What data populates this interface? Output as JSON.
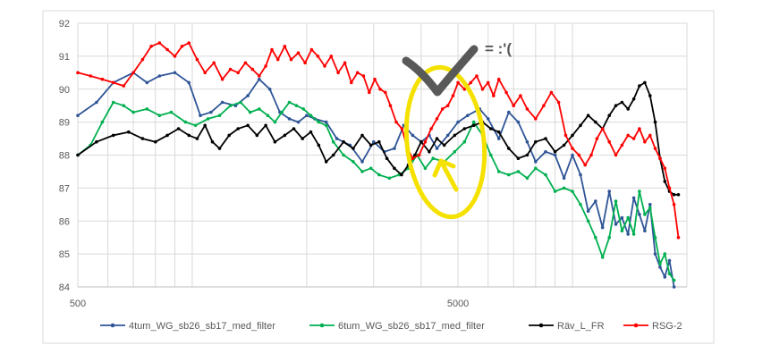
{
  "chart_data": {
    "type": "line",
    "title": "",
    "xlabel": "",
    "ylabel": "",
    "x_scale": "log",
    "xlim": [
      500,
      20000
    ],
    "ylim": [
      84,
      92
    ],
    "y_ticks": [
      84,
      85,
      86,
      87,
      88,
      89,
      90,
      91,
      92
    ],
    "x_tick_labels": [
      {
        "value": 500,
        "label": "500"
      },
      {
        "value": 5000,
        "label": "5000"
      }
    ],
    "grid": true,
    "legend": "bottom",
    "series": [
      {
        "name": "4tum_WG_sb26_sb17_med_filter",
        "color": "#2f5597",
        "points": [
          [
            500,
            89.2
          ],
          [
            560,
            89.6
          ],
          [
            620,
            90.2
          ],
          [
            700,
            90.5
          ],
          [
            760,
            90.2
          ],
          [
            820,
            90.4
          ],
          [
            900,
            90.5
          ],
          [
            980,
            90.2
          ],
          [
            1050,
            89.2
          ],
          [
            1120,
            89.3
          ],
          [
            1200,
            89.6
          ],
          [
            1300,
            89.5
          ],
          [
            1400,
            89.8
          ],
          [
            1500,
            90.3
          ],
          [
            1600,
            90.0
          ],
          [
            1700,
            89.3
          ],
          [
            1800,
            89.1
          ],
          [
            1900,
            89.0
          ],
          [
            2000,
            89.2
          ],
          [
            2100,
            89.1
          ],
          [
            2250,
            89.0
          ],
          [
            2400,
            88.5
          ],
          [
            2600,
            88.3
          ],
          [
            2800,
            87.8
          ],
          [
            3000,
            88.4
          ],
          [
            3200,
            88.1
          ],
          [
            3400,
            88.2
          ],
          [
            3600,
            88.9
          ],
          [
            3800,
            88.6
          ],
          [
            4000,
            88.4
          ],
          [
            4200,
            88.6
          ],
          [
            4400,
            88.2
          ],
          [
            4700,
            88.6
          ],
          [
            5000,
            89.0
          ],
          [
            5300,
            89.2
          ],
          [
            5700,
            89.4
          ],
          [
            6000,
            89.1
          ],
          [
            6400,
            88.5
          ],
          [
            6800,
            89.3
          ],
          [
            7200,
            89.0
          ],
          [
            7600,
            88.4
          ],
          [
            8000,
            87.8
          ],
          [
            8500,
            88.1
          ],
          [
            9000,
            88.0
          ],
          [
            9500,
            87.3
          ],
          [
            10000,
            88.0
          ],
          [
            10500,
            87.4
          ],
          [
            11000,
            86.3
          ],
          [
            11500,
            86.6
          ],
          [
            12000,
            85.8
          ],
          [
            12500,
            86.9
          ],
          [
            13000,
            85.9
          ],
          [
            13500,
            86.1
          ],
          [
            14000,
            85.6
          ],
          [
            14500,
            86.7
          ],
          [
            15000,
            86.2
          ],
          [
            15500,
            85.7
          ],
          [
            16000,
            86.5
          ],
          [
            16500,
            85.0
          ],
          [
            17000,
            84.6
          ],
          [
            17500,
            84.3
          ],
          [
            18000,
            84.8
          ],
          [
            18500,
            84.0
          ]
        ]
      },
      {
        "name": "6tum_WG_sb26_sb17_med_filter",
        "color": "#00b050",
        "points": [
          [
            500,
            88.0
          ],
          [
            540,
            88.3
          ],
          [
            580,
            89.0
          ],
          [
            620,
            89.6
          ],
          [
            660,
            89.5
          ],
          [
            700,
            89.3
          ],
          [
            760,
            89.4
          ],
          [
            820,
            89.2
          ],
          [
            880,
            89.3
          ],
          [
            960,
            89.0
          ],
          [
            1020,
            88.9
          ],
          [
            1100,
            89.1
          ],
          [
            1180,
            89.2
          ],
          [
            1260,
            89.5
          ],
          [
            1340,
            89.6
          ],
          [
            1420,
            89.3
          ],
          [
            1500,
            89.4
          ],
          [
            1580,
            89.2
          ],
          [
            1650,
            89.0
          ],
          [
            1720,
            89.3
          ],
          [
            1800,
            89.6
          ],
          [
            1880,
            89.5
          ],
          [
            1960,
            89.4
          ],
          [
            2050,
            89.2
          ],
          [
            2150,
            89.0
          ],
          [
            2250,
            88.9
          ],
          [
            2350,
            88.4
          ],
          [
            2500,
            88.0
          ],
          [
            2650,
            87.8
          ],
          [
            2800,
            87.5
          ],
          [
            2950,
            87.6
          ],
          [
            3100,
            87.4
          ],
          [
            3300,
            87.3
          ],
          [
            3500,
            87.4
          ],
          [
            3700,
            87.6
          ],
          [
            3900,
            88.0
          ],
          [
            4100,
            87.6
          ],
          [
            4300,
            87.9
          ],
          [
            4600,
            87.8
          ],
          [
            4900,
            88.1
          ],
          [
            5200,
            88.4
          ],
          [
            5500,
            89.0
          ],
          [
            5800,
            88.6
          ],
          [
            6100,
            88.0
          ],
          [
            6400,
            87.5
          ],
          [
            6800,
            87.4
          ],
          [
            7200,
            87.5
          ],
          [
            7600,
            87.3
          ],
          [
            8000,
            87.6
          ],
          [
            8500,
            87.4
          ],
          [
            9000,
            86.9
          ],
          [
            9500,
            87.0
          ],
          [
            10000,
            86.9
          ],
          [
            10500,
            86.5
          ],
          [
            11000,
            86.0
          ],
          [
            11500,
            85.5
          ],
          [
            12000,
            84.9
          ],
          [
            12500,
            85.5
          ],
          [
            13000,
            86.6
          ],
          [
            13500,
            85.7
          ],
          [
            14000,
            86.1
          ],
          [
            14500,
            85.6
          ],
          [
            15000,
            86.9
          ],
          [
            15500,
            86.2
          ],
          [
            16000,
            86.4
          ],
          [
            16500,
            85.5
          ],
          [
            17000,
            84.7
          ],
          [
            17500,
            85.0
          ],
          [
            18000,
            84.4
          ],
          [
            18500,
            84.2
          ]
        ]
      },
      {
        "name": "Räv_L_FR",
        "color": "#000000",
        "points": [
          [
            500,
            88.0
          ],
          [
            560,
            88.4
          ],
          [
            620,
            88.6
          ],
          [
            680,
            88.7
          ],
          [
            740,
            88.5
          ],
          [
            800,
            88.4
          ],
          [
            860,
            88.6
          ],
          [
            920,
            88.8
          ],
          [
            980,
            88.6
          ],
          [
            1030,
            88.5
          ],
          [
            1080,
            88.9
          ],
          [
            1130,
            88.4
          ],
          [
            1180,
            88.2
          ],
          [
            1250,
            88.6
          ],
          [
            1320,
            88.8
          ],
          [
            1400,
            88.9
          ],
          [
            1480,
            88.6
          ],
          [
            1560,
            88.9
          ],
          [
            1650,
            88.4
          ],
          [
            1750,
            88.6
          ],
          [
            1850,
            88.8
          ],
          [
            1950,
            88.5
          ],
          [
            2050,
            88.7
          ],
          [
            2150,
            88.3
          ],
          [
            2250,
            87.8
          ],
          [
            2350,
            88.0
          ],
          [
            2500,
            88.4
          ],
          [
            2650,
            88.2
          ],
          [
            2800,
            88.6
          ],
          [
            2950,
            88.3
          ],
          [
            3100,
            88.4
          ],
          [
            3250,
            87.9
          ],
          [
            3400,
            87.6
          ],
          [
            3550,
            87.4
          ],
          [
            3700,
            87.7
          ],
          [
            3850,
            88.0
          ],
          [
            4000,
            88.4
          ],
          [
            4200,
            88.1
          ],
          [
            4400,
            88.5
          ],
          [
            4600,
            88.3
          ],
          [
            4900,
            88.6
          ],
          [
            5200,
            88.8
          ],
          [
            5500,
            88.9
          ],
          [
            5800,
            89.0
          ],
          [
            6100,
            88.8
          ],
          [
            6400,
            88.7
          ],
          [
            6800,
            88.2
          ],
          [
            7200,
            87.9
          ],
          [
            7600,
            88.0
          ],
          [
            8000,
            88.4
          ],
          [
            8500,
            88.5
          ],
          [
            9000,
            88.1
          ],
          [
            9500,
            88.3
          ],
          [
            10000,
            88.6
          ],
          [
            10500,
            88.9
          ],
          [
            11000,
            89.2
          ],
          [
            11500,
            89.0
          ],
          [
            12000,
            88.8
          ],
          [
            12500,
            89.2
          ],
          [
            13000,
            89.5
          ],
          [
            13500,
            89.6
          ],
          [
            14000,
            89.4
          ],
          [
            14500,
            89.7
          ],
          [
            15000,
            90.1
          ],
          [
            15500,
            90.2
          ],
          [
            16000,
            89.8
          ],
          [
            16500,
            89.0
          ],
          [
            17000,
            87.9
          ],
          [
            17500,
            87.2
          ],
          [
            18000,
            86.9
          ],
          [
            18500,
            86.8
          ],
          [
            19000,
            86.8
          ]
        ]
      },
      {
        "name": "RSG-2",
        "color": "#ff0000",
        "points": [
          [
            500,
            90.5
          ],
          [
            540,
            90.4
          ],
          [
            580,
            90.3
          ],
          [
            620,
            90.2
          ],
          [
            660,
            90.1
          ],
          [
            700,
            90.5
          ],
          [
            740,
            90.9
          ],
          [
            780,
            91.3
          ],
          [
            820,
            91.4
          ],
          [
            860,
            91.2
          ],
          [
            900,
            91.0
          ],
          [
            940,
            91.3
          ],
          [
            980,
            91.4
          ],
          [
            1030,
            90.9
          ],
          [
            1080,
            90.5
          ],
          [
            1140,
            90.8
          ],
          [
            1200,
            90.3
          ],
          [
            1260,
            90.6
          ],
          [
            1320,
            90.5
          ],
          [
            1380,
            90.8
          ],
          [
            1440,
            90.6
          ],
          [
            1500,
            90.4
          ],
          [
            1560,
            90.7
          ],
          [
            1620,
            91.2
          ],
          [
            1680,
            90.9
          ],
          [
            1750,
            91.3
          ],
          [
            1820,
            90.9
          ],
          [
            1900,
            91.1
          ],
          [
            1980,
            90.8
          ],
          [
            2060,
            91.2
          ],
          [
            2140,
            91.0
          ],
          [
            2230,
            90.7
          ],
          [
            2320,
            91.0
          ],
          [
            2420,
            90.5
          ],
          [
            2520,
            90.8
          ],
          [
            2620,
            90.2
          ],
          [
            2720,
            90.5
          ],
          [
            2820,
            90.4
          ],
          [
            2920,
            89.9
          ],
          [
            3020,
            90.3
          ],
          [
            3120,
            90.0
          ],
          [
            3220,
            89.9
          ],
          [
            3320,
            89.5
          ],
          [
            3440,
            89.0
          ],
          [
            3560,
            88.8
          ],
          [
            3680,
            88.2
          ],
          [
            3800,
            87.9
          ],
          [
            3950,
            88.0
          ],
          [
            4100,
            88.4
          ],
          [
            4250,
            88.8
          ],
          [
            4400,
            89.1
          ],
          [
            4550,
            89.4
          ],
          [
            4700,
            89.5
          ],
          [
            4850,
            89.8
          ],
          [
            5000,
            90.2
          ],
          [
            5200,
            90.0
          ],
          [
            5400,
            90.2
          ],
          [
            5600,
            90.4
          ],
          [
            5800,
            90.0
          ],
          [
            6000,
            90.2
          ],
          [
            6200,
            89.8
          ],
          [
            6400,
            90.3
          ],
          [
            6700,
            89.9
          ],
          [
            7000,
            89.5
          ],
          [
            7300,
            89.8
          ],
          [
            7600,
            89.4
          ],
          [
            8000,
            89.1
          ],
          [
            8400,
            89.5
          ],
          [
            8800,
            89.9
          ],
          [
            9200,
            89.6
          ],
          [
            9600,
            88.6
          ],
          [
            10000,
            88.2
          ],
          [
            10400,
            88.0
          ],
          [
            10800,
            87.7
          ],
          [
            11200,
            88.0
          ],
          [
            11600,
            88.5
          ],
          [
            12000,
            88.8
          ],
          [
            12500,
            88.4
          ],
          [
            13000,
            88.0
          ],
          [
            13500,
            88.3
          ],
          [
            14000,
            88.6
          ],
          [
            14500,
            88.5
          ],
          [
            15000,
            88.8
          ],
          [
            15500,
            88.4
          ],
          [
            16000,
            88.6
          ],
          [
            16500,
            88.2
          ],
          [
            17000,
            87.9
          ],
          [
            17500,
            87.6
          ],
          [
            18000,
            87.0
          ],
          [
            18500,
            86.5
          ],
          [
            19000,
            85.5
          ]
        ]
      }
    ]
  },
  "annotations": {
    "scrawl_text": "= :'(",
    "highlight_color": "#f5e100",
    "checkmark_color": "#595959"
  }
}
